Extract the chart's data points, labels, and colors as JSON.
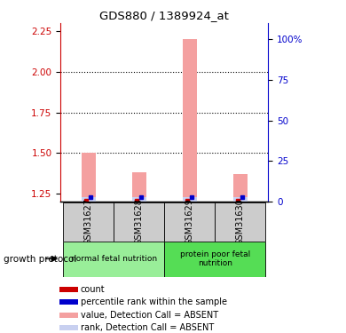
{
  "title": "GDS880 / 1389924_at",
  "samples": [
    "GSM31627",
    "GSM31628",
    "GSM31629",
    "GSM31630"
  ],
  "value_bars": [
    1.5,
    1.38,
    2.2,
    1.37
  ],
  "ylim_left": [
    1.2,
    2.3
  ],
  "yticks_left": [
    1.25,
    1.5,
    1.75,
    2.0,
    2.25
  ],
  "yticks_right": [
    0,
    25,
    50,
    75,
    100
  ],
  "ylim_right": [
    0,
    110
  ],
  "bar_color_value": "#f4a0a0",
  "bar_color_rank": "#c8d0f0",
  "count_color": "#cc0000",
  "percentile_color": "#0000cc",
  "bar_width": 0.28,
  "rank_bar_height": 0.025,
  "x_positions": [
    0,
    1,
    2,
    3
  ],
  "left_axis_color": "#cc0000",
  "right_axis_color": "#0000cc",
  "sample_bg_color": "#cccccc",
  "group1_color": "#99ee99",
  "group2_color": "#55dd55",
  "group1_label": "normal fetal nutrition",
  "group2_label": "protein poor fetal\nnutrition",
  "legend_items": [
    {
      "label": "count",
      "color": "#cc0000"
    },
    {
      "label": "percentile rank within the sample",
      "color": "#0000cc"
    },
    {
      "label": "value, Detection Call = ABSENT",
      "color": "#f4a0a0"
    },
    {
      "label": "rank, Detection Call = ABSENT",
      "color": "#c8d0f0"
    }
  ],
  "growth_protocol_label": "growth protocol"
}
